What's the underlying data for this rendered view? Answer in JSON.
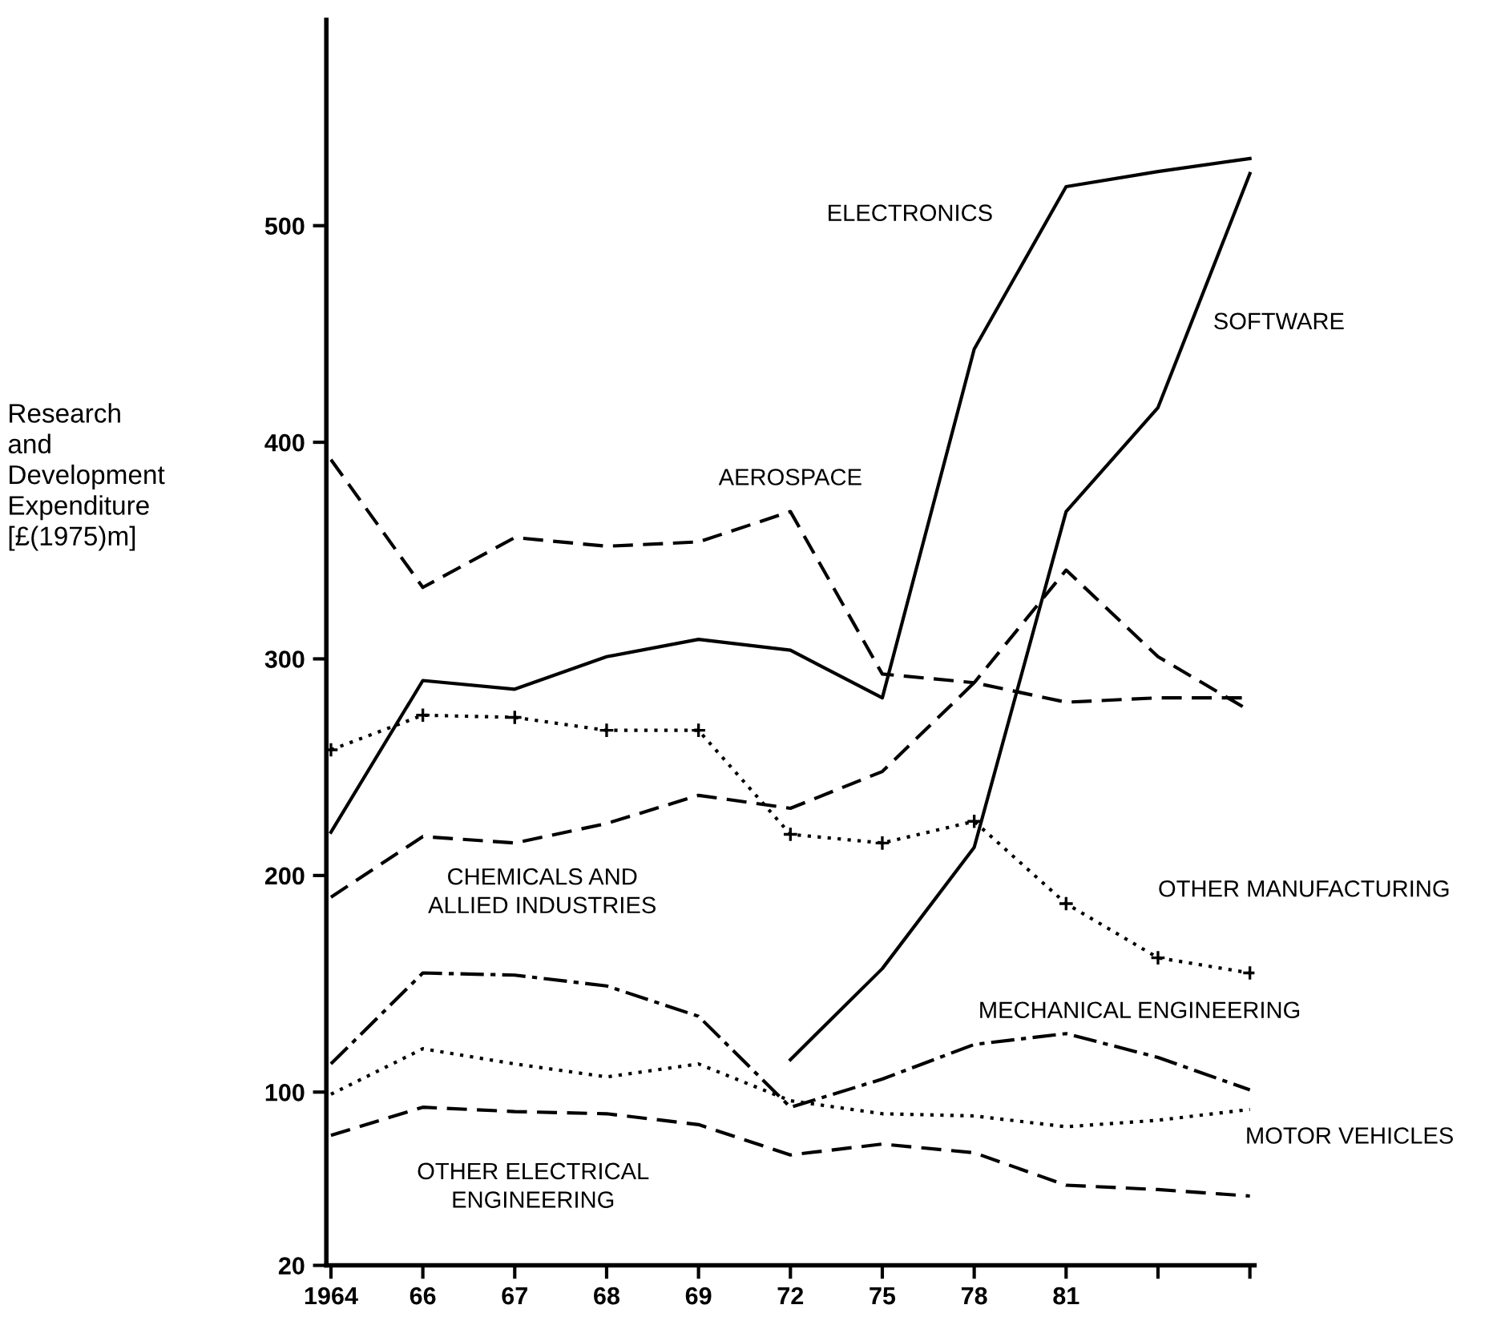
{
  "chart_data": {
    "type": "line",
    "ylabel": "Research\nand\nDevelopment\nExpenditure\n[£(1975)m]",
    "categories": [
      "1964",
      "66",
      "67",
      "68",
      "69",
      "72",
      "75",
      "78",
      "81",
      null,
      null
    ],
    "ylim": [
      20,
      595
    ],
    "yticks": [
      20,
      100,
      200,
      300,
      400,
      500
    ],
    "grid": false,
    "legend": false,
    "series": [
      {
        "name": "ELECTRONICS",
        "color": "#000000",
        "line_style": "solid",
        "values": [
          220,
          290,
          286,
          301,
          309,
          304,
          282,
          443,
          518,
          525,
          531
        ]
      },
      {
        "name": "AEROSPACE",
        "color": "#000000",
        "line_style": "dashed",
        "values": [
          392,
          333,
          356,
          352,
          354,
          368,
          293,
          289,
          341,
          301,
          276
        ]
      },
      {
        "name": "SOFTWARE",
        "color": "#000000",
        "line_style": "solid",
        "values": [
          null,
          null,
          null,
          null,
          null,
          115,
          157,
          213,
          368,
          416,
          524
        ]
      },
      {
        "name": "CHEMICALS AND\nALLIED INDUSTRIES",
        "color": "#000000",
        "line_style": "dashed",
        "values": [
          190,
          218,
          215,
          224,
          237,
          231,
          248,
          289,
          280,
          282,
          282
        ]
      },
      {
        "name": "OTHER MANUFACTURING",
        "color": "#000000",
        "line_style": "dotted",
        "marker": "cross",
        "values": [
          258,
          274,
          273,
          267,
          267,
          219,
          215,
          225,
          187,
          162,
          155
        ]
      },
      {
        "name": "MECHANICAL ENGINEERING",
        "color": "#000000",
        "line_style": "dashdot",
        "values": [
          113,
          155,
          154,
          149,
          135,
          93,
          106,
          122,
          127,
          116,
          101
        ]
      },
      {
        "name": "MOTOR VEHICLES",
        "color": "#000000",
        "line_style": "dotted",
        "values": [
          99,
          120,
          113,
          107,
          113,
          96,
          90,
          89,
          84,
          87,
          92
        ]
      },
      {
        "name": "OTHER ELECTRICAL\nENGINEERING",
        "color": "#000000",
        "line_style": "dashed",
        "values": [
          80,
          93,
          91,
          90,
          85,
          71,
          76,
          72,
          57,
          55,
          52
        ]
      }
    ]
  }
}
